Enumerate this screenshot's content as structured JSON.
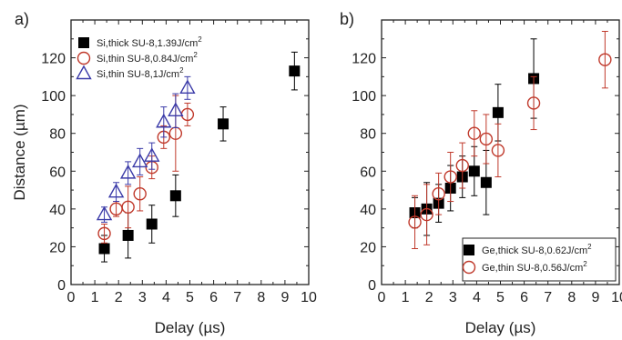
{
  "chart_data": [
    {
      "type": "scatter",
      "panel_label": "a)",
      "xlabel": "Delay (µs)",
      "ylabel": "Distance (µm)",
      "xlim": [
        0,
        10
      ],
      "ylim": [
        0,
        140
      ],
      "x_ticks": [
        "0",
        "1",
        "2",
        "3",
        "4",
        "5",
        "6",
        "7",
        "8",
        "9",
        "10"
      ],
      "y_ticks": [
        "0",
        "20",
        "40",
        "60",
        "80",
        "100",
        "120"
      ],
      "legend_position": "top-left",
      "series": [
        {
          "name": "Si,thick SU-8,1.39J/cm",
          "superscript": "2",
          "marker": "filled-square",
          "color": "#000000",
          "x": [
            1.4,
            2.4,
            3.4,
            4.4,
            6.4,
            9.4
          ],
          "y": [
            19,
            26,
            32,
            47,
            85,
            113
          ],
          "err": [
            7,
            12,
            10,
            11,
            9,
            10
          ]
        },
        {
          "name": "Si,thin SU-8,0.84J/cm",
          "superscript": "2",
          "marker": "open-circle",
          "color": "#c0392b",
          "x": [
            1.4,
            1.9,
            2.4,
            2.9,
            3.4,
            3.9,
            4.4,
            4.9
          ],
          "y": [
            27,
            40,
            41,
            48,
            62,
            78,
            80,
            90
          ],
          "err": [
            5,
            4,
            11,
            9,
            6,
            6,
            20,
            6
          ]
        },
        {
          "name": "Si,thin SU-8,1J/cm",
          "superscript": "2",
          "marker": "open-triangle",
          "color": "#3a3aa8",
          "x": [
            1.4,
            1.9,
            2.4,
            2.9,
            3.4,
            3.9,
            4.4,
            4.9
          ],
          "y": [
            37,
            49,
            59,
            65,
            68,
            86,
            92,
            104
          ],
          "err": [
            4,
            5,
            6,
            7,
            7,
            8,
            9,
            6
          ]
        }
      ]
    },
    {
      "type": "scatter",
      "panel_label": "b)",
      "xlabel": "Delay (µs)",
      "ylabel": "",
      "xlim": [
        0,
        10
      ],
      "ylim": [
        0,
        140
      ],
      "x_ticks": [
        "0",
        "1",
        "2",
        "3",
        "4",
        "5",
        "6",
        "7",
        "8",
        "9",
        "10"
      ],
      "y_ticks": [
        "0",
        "20",
        "40",
        "60",
        "80",
        "100",
        "120"
      ],
      "legend_position": "bottom-right",
      "series": [
        {
          "name": "Ge,thick SU-8,0.62J/cm",
          "superscript": "2",
          "marker": "filled-square",
          "color": "#000000",
          "x": [
            1.4,
            1.9,
            2.4,
            2.9,
            3.4,
            3.9,
            4.4,
            4.9,
            6.4
          ],
          "y": [
            38,
            40,
            43,
            51,
            57,
            60,
            54,
            91,
            109
          ],
          "err": [
            8,
            14,
            10,
            12,
            11,
            13,
            17,
            15,
            21
          ]
        },
        {
          "name": "Ge,thin SU-8,0.56J/cm",
          "superscript": "2",
          "marker": "open-circle",
          "color": "#c0392b",
          "x": [
            1.4,
            1.9,
            2.4,
            2.9,
            3.4,
            3.9,
            4.4,
            4.9,
            6.4,
            9.4
          ],
          "y": [
            33,
            37,
            48,
            57,
            63,
            80,
            77,
            71,
            96,
            119
          ],
          "err": [
            14,
            16,
            11,
            13,
            12,
            12,
            13,
            14,
            14,
            15
          ]
        }
      ]
    }
  ]
}
